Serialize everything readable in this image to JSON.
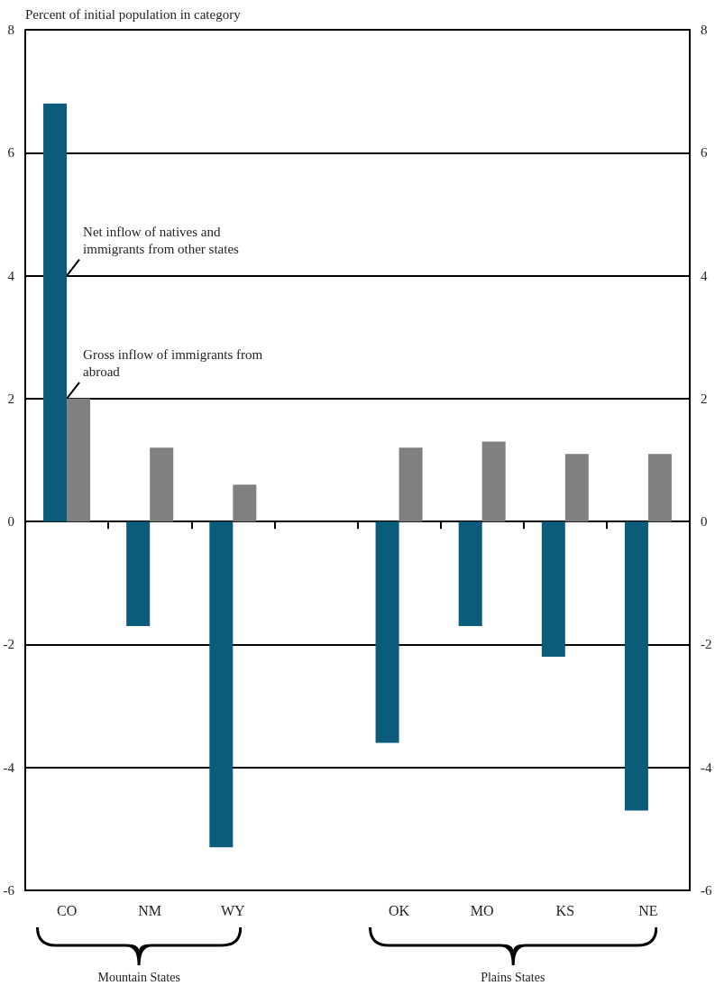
{
  "chart_data": {
    "type": "bar",
    "ylabel": "Percent of initial population in category",
    "categories": [
      "CO",
      "NM",
      "WY",
      null,
      "OK",
      "MO",
      "KS",
      "NE"
    ],
    "series": [
      {
        "color": "#0b5c7a",
        "values": [
          6.8,
          -1.7,
          -5.3,
          null,
          -3.6,
          -1.7,
          -2.2,
          -4.7
        ]
      },
      {
        "color": "#808080",
        "values": [
          2.0,
          1.2,
          0.6,
          null,
          1.2,
          1.3,
          1.1,
          1.1
        ]
      }
    ],
    "ylim": [
      -6,
      8
    ],
    "yticks": [
      -6,
      -4,
      -2,
      0,
      2,
      4,
      6,
      8
    ],
    "y2lim": [
      -6,
      8
    ],
    "y2ticks": [
      -6,
      -4,
      -2,
      0,
      2,
      4,
      6,
      8
    ],
    "grid": "y",
    "annotations": [
      {
        "text": "Net inflow of natives and immigrants from other states",
        "x": "CO",
        "y": 4
      },
      {
        "text": "Gross inflow of immigrants from abroad",
        "x": "CO",
        "y": 2
      },
      "Mountain States",
      "Plains States"
    ]
  }
}
